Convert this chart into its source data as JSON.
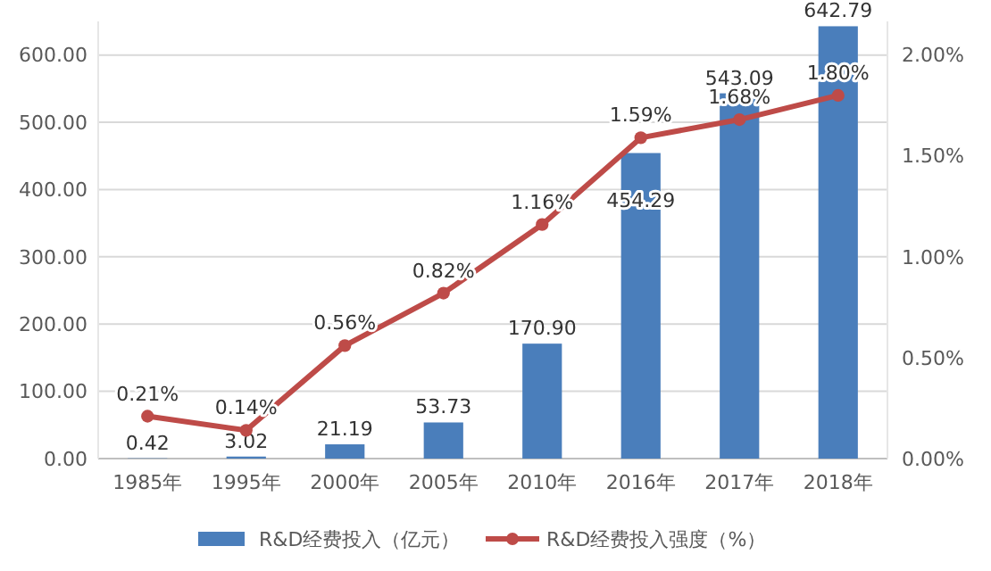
{
  "chart_data": {
    "type": "bar",
    "categories": [
      "1985年",
      "1995年",
      "2000年",
      "2005年",
      "2010年",
      "2016年",
      "2017年",
      "2018年"
    ],
    "series": [
      {
        "name": "R&D经费投入（亿元）",
        "color": "#4a7ebb",
        "values": [
          0.42,
          3.02,
          21.19,
          53.73,
          170.9,
          454.29,
          543.09,
          642.79
        ],
        "value_labels": [
          "0.42",
          "3.02",
          "21.19",
          "53.73",
          "170.90",
          "454.29",
          "543.09",
          "642.79"
        ]
      },
      {
        "name": "R&D经费投入强度（%）",
        "type": "line",
        "axis": "y2",
        "color": "#be4b48",
        "values": [
          0.21,
          0.14,
          0.56,
          0.82,
          1.16,
          1.59,
          1.68,
          1.8
        ],
        "value_labels": [
          "0.21%",
          "0.14%",
          "0.56%",
          "0.82%",
          "1.16%",
          "1.59%",
          "1.68%",
          "1.80%"
        ]
      }
    ],
    "ylim": [
      0,
      650
    ],
    "yticks": [
      {
        "value": 0,
        "label": "0.00"
      },
      {
        "value": 100,
        "label": "100.00"
      },
      {
        "value": 200,
        "label": "200.00"
      },
      {
        "value": 300,
        "label": "300.00"
      },
      {
        "value": 400,
        "label": "400.00"
      },
      {
        "value": 500,
        "label": "500.00"
      },
      {
        "value": 600,
        "label": "600.00"
      }
    ],
    "y2lim": [
      0,
      2.1667
    ],
    "y2ticks": [
      {
        "value": 0,
        "label": "0.00%"
      },
      {
        "value": 0.5,
        "label": "0.50%"
      },
      {
        "value": 1,
        "label": "1.00%"
      },
      {
        "value": 1.5,
        "label": "1.50%"
      },
      {
        "value": 2,
        "label": "2.00%"
      }
    ],
    "grid": "y",
    "legend": "bottom",
    "marker": "circle"
  }
}
